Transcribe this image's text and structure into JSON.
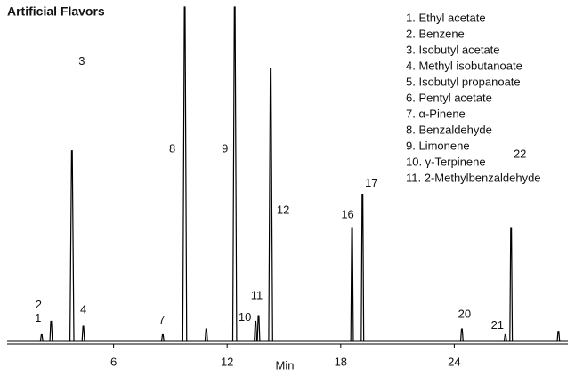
{
  "chart_data": {
    "type": "line",
    "title": "Artificial Flavors",
    "x_label": "Min",
    "xlim": [
      0,
      30
    ],
    "xticks": [
      6,
      12,
      18,
      24
    ],
    "ylim": [
      0,
      100
    ],
    "color": "#000000",
    "x": [
      2.2,
      2.7,
      3.8,
      4.4,
      8.6,
      9.76,
      10.9,
      12.4,
      13.5,
      13.66,
      14.3,
      18.6,
      19.15,
      24.4,
      26.7,
      27.0,
      29.5
    ],
    "values": [
      2,
      6,
      57,
      4.5,
      2,
      100,
      3.7,
      100,
      6,
      7.7,
      81.6,
      34,
      44,
      3.7,
      2,
      34,
      3
    ],
    "peak_labels": [
      "1",
      "2",
      "3",
      "4",
      "7",
      "8",
      null,
      "9",
      "10",
      "11",
      "12",
      "16",
      "17",
      "20",
      "21",
      "22",
      null
    ],
    "legend": [
      "1.  Ethyl acetate",
      "2.  Benzene",
      "3.  Isobutyl acetate",
      "4.  Methyl isobutanoate",
      "5.  Isobutyl propanoate",
      "6.  Pentyl acetate",
      "7.  α-Pinene",
      "8.  Benzaldehyde",
      "9.  Limonene",
      "10.  γ-Terpinene",
      "11.  2-Methylbenzaldehyde"
    ]
  }
}
